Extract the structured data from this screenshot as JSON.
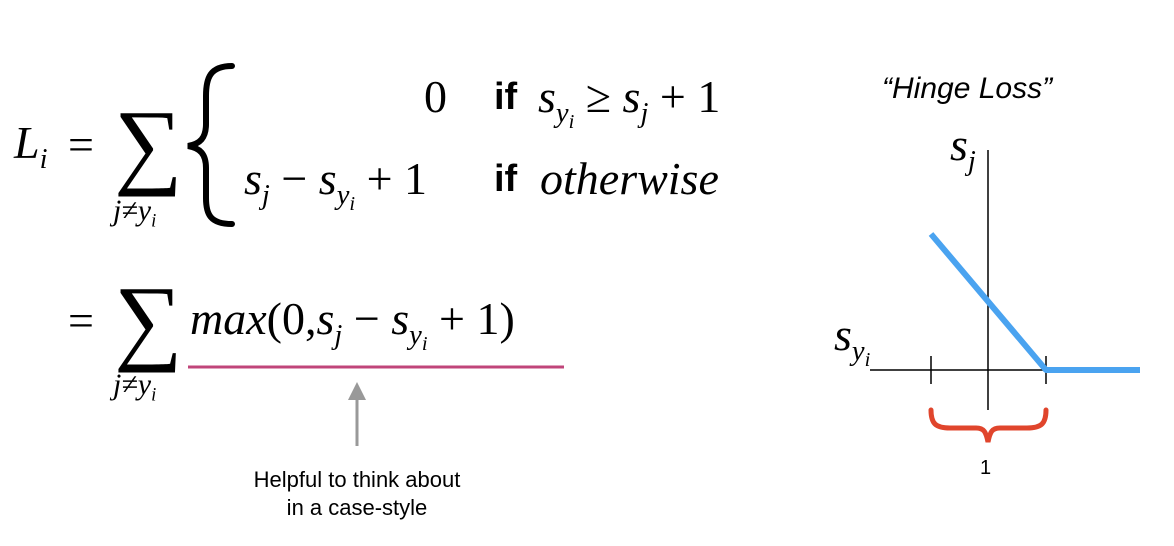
{
  "equation": {
    "lhs_symbol": "L",
    "lhs_subscript": "i",
    "equals": "=",
    "sum_symbol": "∑",
    "sum_limit": "j≠y",
    "sum_limit_subscript": "i",
    "case1": {
      "value": "0",
      "keyword": "if",
      "cond_s": "s",
      "cond_sub": "y",
      "cond_subsub": "i",
      "cond_op": "≥",
      "cond_s2": "s",
      "cond_s2_sub": "j",
      "cond_tail": "+ 1"
    },
    "case2": {
      "s1": "s",
      "s1_sub": "j",
      "minus": "−",
      "s2": "s",
      "s2_sub": "y",
      "s2_subsub": "i",
      "plus_one": "+ 1",
      "keyword": "if",
      "cond": "otherwise"
    },
    "line2": {
      "func": "max",
      "open": "(0,",
      "s1": "s",
      "s1_sub": "j",
      "minus": "−",
      "s2": "s",
      "s2_sub": "y",
      "s2_subsub": "i",
      "close": "+ 1)"
    }
  },
  "annotation": {
    "line1": "Helpful to think about",
    "line2": "in a case-style"
  },
  "plot": {
    "title": "“Hinge Loss”",
    "y_axis_s": "s",
    "y_axis_sub": "j",
    "x_axis_s": "s",
    "x_axis_sub": "y",
    "x_axis_subsub": "i",
    "brace_label": "1",
    "line_color": "#4aa3f0",
    "brace_color": "#e0452c",
    "underline_color": "#c0457a",
    "arrow_color": "#999999"
  }
}
